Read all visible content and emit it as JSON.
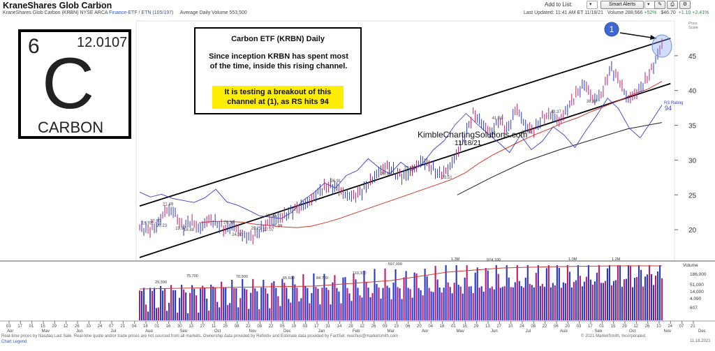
{
  "header": {
    "title": "KraneShares Glob Carbon",
    "subtitle_prefix": "KraneShares Glob Carbon   (KRBN) NYSE ARCA",
    "subtitle_link": "Finance-ETF / ETN (105/197)",
    "subtitle_volume": "Average Daily Volume 553,500",
    "add_to_list": "Add to List:",
    "smart_alerts": "Smart Alerts",
    "last_updated": "Last Updated: 11:41 AM ET 11/18/21",
    "volume_label": "Volume 288,566",
    "volume_change": "+52%",
    "price": "$46.70",
    "change": "+1.10",
    "change_pct": "+2.41%"
  },
  "element_box": {
    "number": "6",
    "mass": "12.0107",
    "symbol": "C",
    "name": "CARBON"
  },
  "note": {
    "title": "Carbon ETF (KRBN) Daily",
    "body": "Since inception KRBN has spent most of the time, inside this rising channel.",
    "highlight": "It is testing a breakout of this channel at (1), as RS hits 94"
  },
  "chart_data": {
    "type": "line",
    "title": "Carbon ETF (KRBN) Daily",
    "watermark": "KimbleChartingSolutions.com",
    "watermark_date": "11/18/21",
    "marker": {
      "label": "1"
    },
    "ylim": [
      15.5,
      50
    ],
    "y_ticks": [
      "20",
      "25",
      "30",
      "35",
      "40",
      "45"
    ],
    "y_scale_labels": [
      "Price",
      "Scale"
    ],
    "price_series": [
      20.3,
      19.95,
      20.5,
      22.8,
      22.6,
      20.3,
      21.3,
      20.0,
      21.5,
      20.9,
      20.0,
      20.6,
      19.2,
      18.9,
      19.8,
      21.0,
      21.5,
      22.1,
      22.9,
      23.4,
      24.2,
      25.6,
      26.3,
      26.1,
      25.0,
      24.8,
      25.6,
      27.0,
      28.4,
      29.2,
      28.0,
      27.6,
      28.7,
      30.0,
      29.0,
      27.9,
      28.6,
      30.7,
      33.5,
      36.8,
      35.2,
      33.8,
      35.9,
      34.3,
      37.6,
      35.0,
      34.2,
      36.0,
      36.6,
      35.5,
      37.5,
      39.5,
      41.0,
      38.6,
      39.5,
      43.3,
      41.5,
      38.7,
      39.6,
      41.2,
      43.5,
      46.7
    ],
    "price_labels": [
      "19.92",
      "20.23",
      "22.90",
      "19.92",
      "21.49",
      "18.88",
      "26.38",
      "24.00",
      "29.25",
      "27.07",
      "29.99",
      "27.99",
      "36.91",
      "35.90",
      "37.69",
      "33.51",
      "41.01",
      "38.66",
      "43.37",
      "38.68"
    ],
    "ma50": [
      21.0,
      21.2,
      21.2,
      21.1,
      20.8,
      20.6,
      20.4,
      20.3,
      20.5,
      21.0,
      21.6,
      22.3,
      23.0,
      23.7,
      24.4,
      25.1,
      25.8,
      26.5,
      27.2,
      28.2,
      29.6,
      30.8,
      31.8,
      32.8,
      33.7,
      34.5,
      35.4,
      36.1,
      37.0,
      37.8,
      38.6,
      39.5,
      40.2,
      41.3
    ],
    "ma200": [
      25.0,
      27.5,
      29.8,
      31.5,
      33.0,
      34.5,
      35.4
    ],
    "rs_line": [
      25.4,
      24.7,
      25.1,
      24.5,
      24.2,
      23.9,
      24.6,
      25.8,
      24.0,
      23.5,
      22.8,
      22.0,
      21.8,
      21.6,
      22.5,
      24.2,
      25.3,
      26.7,
      26.0,
      27.8,
      28.5,
      30.2,
      28.9,
      28.0,
      29.7,
      28.5,
      29.5,
      31.5,
      32.8,
      35.1,
      36.7,
      35.2,
      33.8,
      32.5,
      31.1,
      33.6,
      31.5,
      32.7,
      34.8,
      33.6,
      31.8,
      34.2,
      36.4,
      38.9,
      37.4,
      34.6,
      33.2,
      35.5,
      37.9
    ],
    "rs_rating": {
      "label": "RS Rating",
      "value": 94
    },
    "channel_upper": [
      [
        0,
        23.4
      ],
      [
        62,
        47.5
      ]
    ],
    "channel_lower": [
      [
        0,
        16.0
      ],
      [
        62,
        41.0
      ]
    ],
    "volume": {
      "label": "Volume",
      "ticks": [
        "186,000",
        "51,000",
        "14,000",
        "4,090",
        "607"
      ],
      "peak_labels": [
        "29,300",
        "75,700",
        "70,900",
        "65,600",
        "84,700",
        "119,300",
        "597,000",
        "1.3M",
        "974,100",
        "1.0M",
        "1.2M"
      ]
    },
    "x_ticks": [
      "03",
      "17",
      "01",
      "15",
      "29",
      "12",
      "26",
      "10",
      "24",
      "07",
      "21",
      "04",
      "18",
      "01",
      "16",
      "30",
      "13",
      "27",
      "11",
      "25",
      "08",
      "22",
      "08",
      "22",
      "05",
      "19",
      "03",
      "17",
      "31",
      "14",
      "28",
      "12",
      "26",
      "09",
      "23",
      "06",
      "20",
      "04",
      "18",
      "01",
      "15",
      "29",
      "13",
      "27",
      "10",
      "24",
      "08",
      "22",
      "06",
      "20",
      "03",
      "17",
      "01",
      "15",
      "29",
      "12",
      "26",
      "10",
      "24",
      "07",
      "21"
    ],
    "x_months": [
      "Apr",
      "May",
      "Jun",
      "Jul",
      "Aug",
      "Sep",
      "Oct",
      "Nov",
      "Dec",
      "Jan",
      "Feb",
      "Mar",
      "Apr",
      "May",
      "Jun",
      "Jul",
      "Aug",
      "Sep",
      "Oct",
      "Nov",
      "Dec"
    ]
  },
  "footer": {
    "disclaimer": "Real-time prices by Nasdaq Last Sale. Real-time quote and/or trade prices are not sourced from all markets. Ownership data provided by Refinitiv and Estimate data provided by FactSet. reachus@marketsmith.com",
    "legend_link": "Chart Legend",
    "copyright": "© 2021 MarketSmith, Incorporated.",
    "date": "11.18.2021"
  }
}
